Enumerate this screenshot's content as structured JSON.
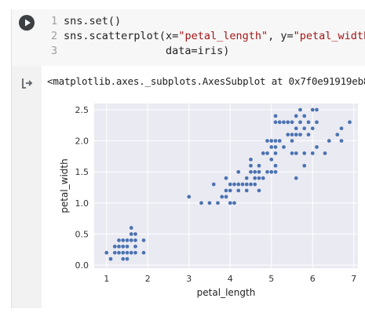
{
  "code": {
    "lines": [
      {
        "num": "1",
        "tokens": [
          {
            "t": "sns.set()",
            "s": ""
          }
        ]
      },
      {
        "num": "2",
        "tokens": [
          {
            "t": "sns.scatterplot(x=",
            "s": ""
          },
          {
            "t": "\"petal_length\"",
            "s": "str"
          },
          {
            "t": ", y=",
            "s": ""
          },
          {
            "t": "\"petal_width\"",
            "s": "str"
          },
          {
            "t": ",",
            "s": ""
          }
        ]
      },
      {
        "num": "3",
        "tokens": [
          {
            "t": "                data=iris)",
            "s": ""
          }
        ]
      }
    ]
  },
  "output": {
    "text": "<matplotlib.axes._subplots.AxesSubplot at 0x7f0e91919eb8>"
  },
  "icons": {
    "run": "play-icon",
    "output": "output-arrow-icon"
  },
  "colors": {
    "point": "#4c72b0",
    "axes_bg": "#eaeaf2",
    "grid": "#ffffff"
  },
  "chart_data": {
    "type": "scatter",
    "xlabel": "petal_length",
    "ylabel": "petal_width",
    "xlim": [
      0.7,
      7.1
    ],
    "ylim": [
      -0.05,
      2.6
    ],
    "xticks": [
      1,
      2,
      3,
      4,
      5,
      6,
      7
    ],
    "yticks": [
      0.0,
      0.5,
      1.0,
      1.5,
      2.0,
      2.5
    ],
    "grid": true,
    "points": [
      [
        1.0,
        0.2
      ],
      [
        1.1,
        0.1
      ],
      [
        1.2,
        0.2
      ],
      [
        1.2,
        0.3
      ],
      [
        1.3,
        0.2
      ],
      [
        1.3,
        0.3
      ],
      [
        1.3,
        0.4
      ],
      [
        1.4,
        0.1
      ],
      [
        1.4,
        0.2
      ],
      [
        1.4,
        0.3
      ],
      [
        1.5,
        0.1
      ],
      [
        1.5,
        0.2
      ],
      [
        1.5,
        0.3
      ],
      [
        1.5,
        0.4
      ],
      [
        1.6,
        0.2
      ],
      [
        1.6,
        0.4
      ],
      [
        1.6,
        0.6
      ],
      [
        1.6,
        0.5
      ],
      [
        1.7,
        0.2
      ],
      [
        1.7,
        0.3
      ],
      [
        1.7,
        0.4
      ],
      [
        1.7,
        0.5
      ],
      [
        1.9,
        0.2
      ],
      [
        1.9,
        0.4
      ],
      [
        1.4,
        0.4
      ],
      [
        1.5,
        0.1
      ],
      [
        3.0,
        1.1
      ],
      [
        3.3,
        1.0
      ],
      [
        3.5,
        1.0
      ],
      [
        3.6,
        1.3
      ],
      [
        3.7,
        1.0
      ],
      [
        3.8,
        1.1
      ],
      [
        3.9,
        1.1
      ],
      [
        3.9,
        1.2
      ],
      [
        3.9,
        1.4
      ],
      [
        4.0,
        1.0
      ],
      [
        4.0,
        1.2
      ],
      [
        4.0,
        1.3
      ],
      [
        4.1,
        1.0
      ],
      [
        4.1,
        1.3
      ],
      [
        4.2,
        1.2
      ],
      [
        4.2,
        1.3
      ],
      [
        4.2,
        1.5
      ],
      [
        4.3,
        1.3
      ],
      [
        4.4,
        1.2
      ],
      [
        4.4,
        1.3
      ],
      [
        4.4,
        1.4
      ],
      [
        4.5,
        1.3
      ],
      [
        4.5,
        1.5
      ],
      [
        4.5,
        1.6
      ],
      [
        4.5,
        1.7
      ],
      [
        4.6,
        1.3
      ],
      [
        4.6,
        1.4
      ],
      [
        4.6,
        1.5
      ],
      [
        4.7,
        1.2
      ],
      [
        4.7,
        1.4
      ],
      [
        4.7,
        1.5
      ],
      [
        4.7,
        1.6
      ],
      [
        4.8,
        1.4
      ],
      [
        4.8,
        1.8
      ],
      [
        4.9,
        1.5
      ],
      [
        4.9,
        1.8
      ],
      [
        4.9,
        2.0
      ],
      [
        5.0,
        1.5
      ],
      [
        5.0,
        1.7
      ],
      [
        5.0,
        1.9
      ],
      [
        5.0,
        2.0
      ],
      [
        5.1,
        1.5
      ],
      [
        5.1,
        1.6
      ],
      [
        5.1,
        1.8
      ],
      [
        5.1,
        1.9
      ],
      [
        5.1,
        2.0
      ],
      [
        5.1,
        2.3
      ],
      [
        5.1,
        2.4
      ],
      [
        5.2,
        2.0
      ],
      [
        5.2,
        2.3
      ],
      [
        5.3,
        1.9
      ],
      [
        5.3,
        2.3
      ],
      [
        5.4,
        2.1
      ],
      [
        5.4,
        2.3
      ],
      [
        5.5,
        1.8
      ],
      [
        5.5,
        2.1
      ],
      [
        5.5,
        2.3
      ],
      [
        5.6,
        1.8
      ],
      [
        5.6,
        2.1
      ],
      [
        5.6,
        2.2
      ],
      [
        5.6,
        2.4
      ],
      [
        5.6,
        1.4
      ],
      [
        5.7,
        2.1
      ],
      [
        5.7,
        2.3
      ],
      [
        5.7,
        2.5
      ],
      [
        5.8,
        1.6
      ],
      [
        5.8,
        1.8
      ],
      [
        5.8,
        2.2
      ],
      [
        5.9,
        2.1
      ],
      [
        5.9,
        2.3
      ],
      [
        6.0,
        1.8
      ],
      [
        6.0,
        2.5
      ],
      [
        6.1,
        1.9
      ],
      [
        6.1,
        2.3
      ],
      [
        6.1,
        2.5
      ],
      [
        6.3,
        1.8
      ],
      [
        6.4,
        2.0
      ],
      [
        6.6,
        2.1
      ],
      [
        6.7,
        2.0
      ],
      [
        6.7,
        2.2
      ],
      [
        6.9,
        2.3
      ],
      [
        5.8,
        2.4
      ],
      [
        6.0,
        2.2
      ],
      [
        5.5,
        2.0
      ]
    ]
  }
}
